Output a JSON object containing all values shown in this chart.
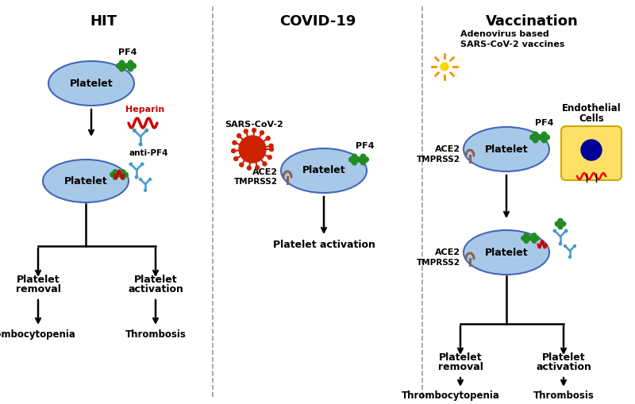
{
  "title_hit": "HIT",
  "title_covid": "COVID-19",
  "title_vacc": "Vaccination",
  "bg_color": "#ffffff",
  "platelet_color": "#a8c8e8",
  "platelet_edge_color": "#4466bb",
  "heparin_color": "#cc0000",
  "pf4_color": "#228B22",
  "antibody_color": "#4499cc",
  "virus_color": "#cc3300",
  "ace2_color": "#8B6050",
  "adeno_outer": "#9932CC",
  "adeno_inner": "#FFD700",
  "adeno_spike": "#FF8C00",
  "endothelial_fill": "#FFE066",
  "endothelial_edge": "#ccaa00",
  "nucleus_color": "#000099",
  "separator_color": "#999999",
  "text_color": "#000000"
}
